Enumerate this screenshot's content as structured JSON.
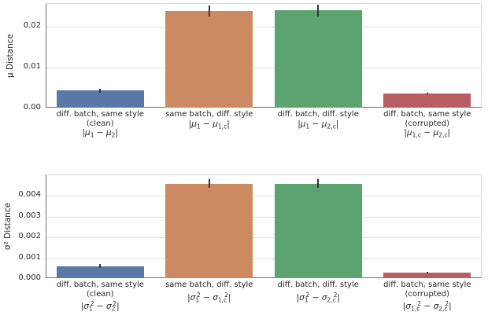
{
  "figure": {
    "background": "#ffffff",
    "text_color": "#262626",
    "grid_color": "#dcdcdc"
  },
  "chart_data": [
    {
      "type": "bar",
      "ylabel": "μ Distance",
      "xlabel": "",
      "ylim": [
        0,
        0.0256
      ],
      "grid": true,
      "legend": "none",
      "yticks": [
        {
          "value": 0,
          "label": "0.00"
        },
        {
          "value": 0.01,
          "label": "0.01"
        },
        {
          "value": 0.02,
          "label": "0.02"
        }
      ],
      "categories": [
        {
          "name": "diff. batch, same style",
          "qualifier": "(clean)",
          "formula_html": "|<i>μ</i><sub>1</sub> − <i>μ</i><sub>2</sub>|"
        },
        {
          "name": "same batch, diff. style",
          "qualifier": "",
          "formula_html": "|<i>μ</i><sub>1</sub> − <i>μ</i><sub>1,c</sub>|"
        },
        {
          "name": "diff. batch, diff. style",
          "qualifier": "",
          "formula_html": "|<i>μ</i><sub>1</sub> − <i>μ</i><sub>2,c</sub>|"
        },
        {
          "name": "diff. batch, same style",
          "qualifier": "(corrupted)",
          "formula_html": "|<i>μ</i><sub>1,c</sub> − <i>μ</i><sub>2,c</sub>|"
        }
      ],
      "values": [
        0.0044,
        0.0239,
        0.024,
        0.0036
      ],
      "errors": [
        0.0005,
        0.0013,
        0.0014,
        0.0002
      ],
      "bar_colors": [
        "#5878a8",
        "#cc8a63",
        "#5ba46f",
        "#b85d62"
      ],
      "error_bar_color": "#333333"
    },
    {
      "type": "bar",
      "ylabel": "σ² Distance",
      "xlabel": "",
      "ylim": [
        0,
        0.005
      ],
      "grid": true,
      "legend": "none",
      "yticks": [
        {
          "value": 0,
          "label": "0.000"
        },
        {
          "value": 0.001,
          "label": "0.001"
        },
        {
          "value": 0.002,
          "label": "0.002"
        },
        {
          "value": 0.003,
          "label": "0.003"
        },
        {
          "value": 0.004,
          "label": "0.004"
        }
      ],
      "categories": [
        {
          "name": "diff. batch, same style",
          "qualifier": "(clean)",
          "formula_html": "|<i>σ</i><sub>1</sub><sup>2</sup> − <i>σ</i><sub>2</sub><sup>2</sup>|"
        },
        {
          "name": "same batch, diff. style",
          "qualifier": "",
          "formula_html": "|<i>σ</i><sub>1</sub><sup>2</sup> − <i>σ</i><sub>1,c</sub><sup>2</sup>|"
        },
        {
          "name": "diff. batch, diff. style",
          "qualifier": "",
          "formula_html": "|<i>σ</i><sub>1</sub><sup>2</sup> − <i>σ</i><sub>2,c</sub><sup>2</sup>|"
        },
        {
          "name": "diff. batch, same style",
          "qualifier": "(corrupted)",
          "formula_html": "|<i>σ</i><sub>1,c</sub><sup>2</sup> − <i>σ</i><sub>2,c</sub><sup>2</sup>|"
        }
      ],
      "values": [
        0.00062,
        0.0046,
        0.0046,
        0.0003
      ],
      "errors": [
        0.0001,
        0.0002,
        0.0002,
        5e-05
      ],
      "bar_colors": [
        "#5878a8",
        "#cc8a63",
        "#5ba46f",
        "#b85d62"
      ],
      "error_bar_color": "#333333"
    }
  ]
}
